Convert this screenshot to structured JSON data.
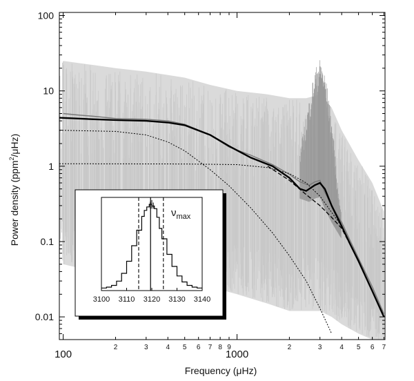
{
  "chart_data": {
    "type": "line",
    "title": "",
    "xlabel": "Frequency (μHz)",
    "ylabel_parts": [
      "Power density (ppm",
      "2",
      "/μHz)"
    ],
    "x_scale": "log",
    "y_scale": "log",
    "xlim": [
      95,
      7100
    ],
    "ylim": [
      0.005,
      110
    ],
    "x_major_ticks": [
      {
        "v": 100,
        "label": "100"
      },
      {
        "v": 1000,
        "label": "1000"
      }
    ],
    "x_minor_ticks": [
      {
        "v": 200,
        "label": "2"
      },
      {
        "v": 300,
        "label": "3"
      },
      {
        "v": 400,
        "label": "4"
      },
      {
        "v": 500,
        "label": "5"
      },
      {
        "v": 600,
        "label": "6"
      },
      {
        "v": 700,
        "label": "7"
      },
      {
        "v": 800,
        "label": "8"
      },
      {
        "v": 900,
        "label": "9"
      },
      {
        "v": 2000,
        "label": "2"
      },
      {
        "v": 3000,
        "label": "3"
      },
      {
        "v": 4000,
        "label": "4"
      },
      {
        "v": 5000,
        "label": "5"
      },
      {
        "v": 6000,
        "label": "6"
      },
      {
        "v": 7000,
        "label": "7"
      }
    ],
    "y_major_ticks": [
      {
        "v": 0.01,
        "label": "0.01"
      },
      {
        "v": 0.1,
        "label": "0.1"
      },
      {
        "v": 1,
        "label": "1"
      },
      {
        "v": 10,
        "label": "10"
      },
      {
        "v": 100,
        "label": "100"
      }
    ],
    "grid": false,
    "legend": "none",
    "series": [
      {
        "style": "raw spectrum, light gray band",
        "x": [
          100,
          150,
          200,
          300,
          500,
          700,
          1000,
          1500,
          2000,
          2500,
          3000,
          3500,
          4000,
          5000,
          6000,
          7000
        ],
        "upper": [
          25,
          22,
          20,
          18,
          15,
          12,
          10,
          9,
          8,
          8,
          9,
          6,
          3,
          1.2,
          0.6,
          0.25
        ],
        "lower": [
          0.05,
          0.04,
          0.04,
          0.035,
          0.03,
          0.025,
          0.02,
          0.015,
          0.012,
          0.012,
          0.012,
          0.01,
          0.008,
          0.006,
          0.005,
          0.005
        ]
      },
      {
        "style": "smoothed spectrum, dark gray",
        "x": [
          100,
          120,
          150,
          200,
          300,
          400,
          500,
          700,
          900,
          1200,
          1600,
          2000,
          2300,
          2600,
          2800,
          3000,
          3200,
          3500,
          4000,
          4500,
          5000,
          6000,
          7000
        ],
        "y": [
          5.0,
          4.8,
          4.6,
          4.3,
          4.2,
          4.0,
          3.6,
          2.6,
          1.8,
          1.4,
          1.05,
          0.78,
          0.62,
          0.56,
          0.62,
          0.65,
          0.45,
          0.3,
          0.18,
          0.1,
          0.06,
          0.025,
          0.011
        ]
      },
      {
        "style": "background fit, thick black",
        "x": [
          95,
          150,
          200,
          300,
          400,
          500,
          700,
          900,
          1200,
          1600,
          2000,
          2300,
          2500,
          2800,
          3000,
          3200,
          3500,
          4000,
          4500,
          5000,
          6000,
          7000
        ],
        "y": [
          4.4,
          4.2,
          4.1,
          4.0,
          3.8,
          3.5,
          2.6,
          1.85,
          1.3,
          1.0,
          0.7,
          0.5,
          0.47,
          0.56,
          0.6,
          0.5,
          0.3,
          0.16,
          0.09,
          0.055,
          0.022,
          0.01
        ]
      },
      {
        "style": "background without envelope, dashed",
        "x": [
          1500,
          2000,
          2500,
          3000,
          3500,
          4000,
          5000,
          6000,
          7000
        ],
        "y": [
          1.0,
          0.65,
          0.42,
          0.3,
          0.21,
          0.15,
          0.055,
          0.022,
          0.01
        ]
      },
      {
        "style": "component 1, dotted",
        "x": [
          95,
          200,
          300,
          400,
          500,
          700,
          900,
          1200,
          1600,
          2000,
          2500,
          3000,
          3500
        ],
        "y": [
          3.0,
          2.9,
          2.6,
          2.1,
          1.6,
          0.9,
          0.55,
          0.28,
          0.13,
          0.065,
          0.03,
          0.013,
          0.006
        ]
      },
      {
        "style": "component 2, dotted",
        "x": [
          95,
          500,
          1000,
          1500,
          2000,
          2500,
          3000,
          4000,
          5000,
          6000,
          7000
        ],
        "y": [
          1.08,
          1.07,
          1.05,
          0.96,
          0.8,
          0.6,
          0.4,
          0.16,
          0.055,
          0.022,
          0.01
        ]
      }
    ],
    "inset": {
      "type": "line",
      "xlim": [
        3100,
        3140
      ],
      "x_ticks": [
        3100,
        3110,
        3120,
        3130,
        3140
      ],
      "label_main": "ν",
      "label_sub": "max",
      "x": [
        3100,
        3102,
        3104,
        3106,
        3108,
        3110,
        3112,
        3114,
        3116,
        3117,
        3118,
        3119,
        3120,
        3121,
        3122,
        3123,
        3124,
        3126,
        3128,
        3130,
        3132,
        3134,
        3136,
        3138,
        3140
      ],
      "y": [
        0.03,
        0.04,
        0.06,
        0.11,
        0.2,
        0.34,
        0.52,
        0.7,
        0.86,
        0.93,
        0.97,
        1.0,
        0.98,
        0.95,
        0.85,
        0.72,
        0.6,
        0.42,
        0.28,
        0.17,
        0.1,
        0.06,
        0.04,
        0.03,
        0.03
      ],
      "spikes": [
        {
          "x": 3119.4,
          "y": 1.03
        },
        {
          "x": 3120.0,
          "y": 1.05
        },
        {
          "x": 3120.6,
          "y": 1.02
        }
      ],
      "solid_line": 3119.5,
      "dashed_lines": [
        3114.8,
        3124.6
      ]
    }
  }
}
